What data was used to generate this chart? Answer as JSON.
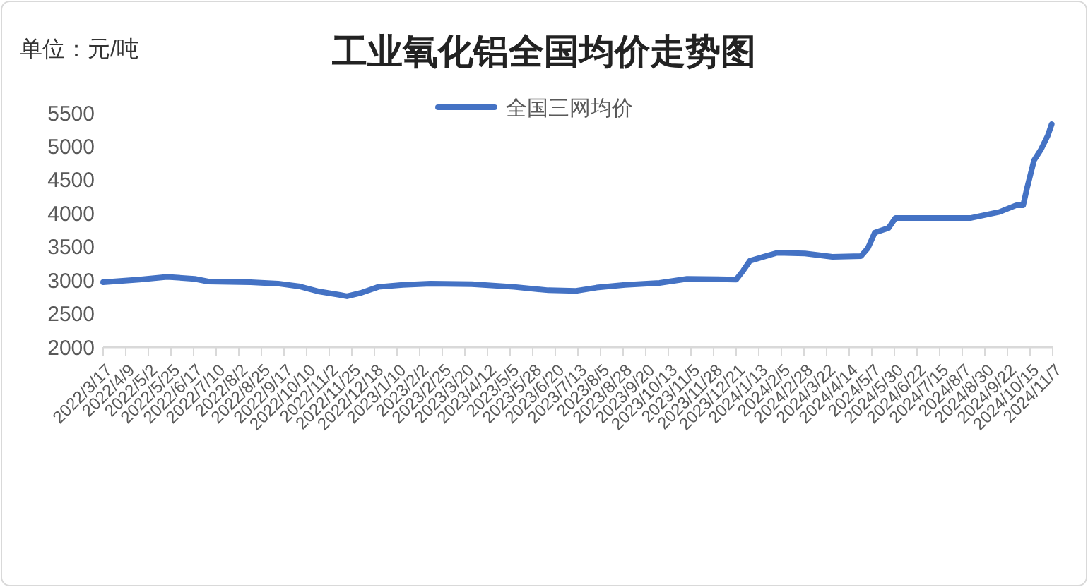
{
  "chart_data": {
    "type": "line",
    "title": "工业氧化铝全国均价走势图",
    "ylabel": "单位：元/吨",
    "x": [
      "2022-03-17",
      "2022-04-23",
      "2022-05-21",
      "2022-06-18",
      "2022-07-02",
      "2022-08-14",
      "2022-09-11",
      "2022-10-02",
      "2022-10-23",
      "2022-11-13",
      "2022-11-20",
      "2022-12-04",
      "2022-12-22",
      "2023-01-16",
      "2023-02-13",
      "2023-03-27",
      "2023-05-09",
      "2023-06-13",
      "2023-07-11",
      "2023-08-01",
      "2023-08-30",
      "2023-10-04",
      "2023-11-01",
      "2023-12-21",
      "2023-12-28",
      "2024-01-04",
      "2024-01-18",
      "2024-02-01",
      "2024-02-29",
      "2024-03-28",
      "2024-04-26",
      "2024-05-03",
      "2024-05-10",
      "2024-05-24",
      "2024-05-31",
      "2024-08-16",
      "2024-09-14",
      "2024-10-01",
      "2024-10-08",
      "2024-10-12",
      "2024-10-19",
      "2024-10-26",
      "2024-11-02",
      "2024-11-06"
    ],
    "series": [
      {
        "name": "全国三网均价",
        "color": "#4472c4",
        "values": [
          2970,
          3010,
          3050,
          3020,
          2980,
          2970,
          2950,
          2910,
          2830,
          2780,
          2760,
          2810,
          2900,
          2930,
          2950,
          2940,
          2900,
          2850,
          2840,
          2890,
          2930,
          2960,
          3020,
          3010,
          3140,
          3290,
          3350,
          3410,
          3400,
          3350,
          3360,
          3480,
          3710,
          3780,
          3930,
          3930,
          4020,
          4120,
          4120,
          4380,
          4790,
          4950,
          5160,
          5330
        ]
      }
    ],
    "xlim": [
      "2022-03-17",
      "2024-11-07"
    ],
    "xticks": [
      {
        "value": "2022-03-17",
        "label": "2022/3/17"
      },
      {
        "value": "2022-04-09",
        "label": "2022/4/9"
      },
      {
        "value": "2022-05-02",
        "label": "2022/5/2"
      },
      {
        "value": "2022-05-25",
        "label": "2022/5/25"
      },
      {
        "value": "2022-06-17",
        "label": "2022/6/17"
      },
      {
        "value": "2022-07-10",
        "label": "2022/7/10"
      },
      {
        "value": "2022-08-02",
        "label": "2022/8/2"
      },
      {
        "value": "2022-08-25",
        "label": "2022/8/25"
      },
      {
        "value": "2022-09-17",
        "label": "2022/9/17"
      },
      {
        "value": "2022-10-10",
        "label": "2022/10/10"
      },
      {
        "value": "2022-11-02",
        "label": "2022/11/2"
      },
      {
        "value": "2022-11-25",
        "label": "2022/11/25"
      },
      {
        "value": "2022-12-18",
        "label": "2022/12/18"
      },
      {
        "value": "2023-01-10",
        "label": "2023/1/10"
      },
      {
        "value": "2023-02-02",
        "label": "2023/2/2"
      },
      {
        "value": "2023-02-25",
        "label": "2023/2/25"
      },
      {
        "value": "2023-03-20",
        "label": "2023/3/20"
      },
      {
        "value": "2023-04-12",
        "label": "2023/4/12"
      },
      {
        "value": "2023-05-05",
        "label": "2023/5/5"
      },
      {
        "value": "2023-05-28",
        "label": "2023/5/28"
      },
      {
        "value": "2023-06-20",
        "label": "2023/6/20"
      },
      {
        "value": "2023-07-13",
        "label": "2023/7/13"
      },
      {
        "value": "2023-08-05",
        "label": "2023/8/5"
      },
      {
        "value": "2023-08-28",
        "label": "2023/8/28"
      },
      {
        "value": "2023-09-20",
        "label": "2023/9/20"
      },
      {
        "value": "2023-10-13",
        "label": "2023/10/13"
      },
      {
        "value": "2023-11-05",
        "label": "2023/11/5"
      },
      {
        "value": "2023-11-28",
        "label": "2023/11/28"
      },
      {
        "value": "2023-12-21",
        "label": "2023/12/21"
      },
      {
        "value": "2024-01-13",
        "label": "2024/1/13"
      },
      {
        "value": "2024-02-05",
        "label": "2024/2/5"
      },
      {
        "value": "2024-02-28",
        "label": "2024/2/28"
      },
      {
        "value": "2024-03-22",
        "label": "2024/3/22"
      },
      {
        "value": "2024-04-14",
        "label": "2024/4/14"
      },
      {
        "value": "2024-05-07",
        "label": "2024/5/7"
      },
      {
        "value": "2024-05-30",
        "label": "2024/5/30"
      },
      {
        "value": "2024-06-22",
        "label": "2024/6/22"
      },
      {
        "value": "2024-07-15",
        "label": "2024/7/15"
      },
      {
        "value": "2024-08-07",
        "label": "2024/8/7"
      },
      {
        "value": "2024-08-30",
        "label": "2024/8/30"
      },
      {
        "value": "2024-09-22",
        "label": "2024/9/22"
      },
      {
        "value": "2024-10-15",
        "label": "2024/10/15"
      },
      {
        "value": "2024-11-07",
        "label": "2024/11/7"
      }
    ],
    "ylim": [
      2000,
      5500
    ],
    "yticks": [
      2000,
      2500,
      3000,
      3500,
      4000,
      4500,
      5000,
      5500
    ],
    "grid": false,
    "legend": "top",
    "marker": "none",
    "line_style": "solid"
  }
}
